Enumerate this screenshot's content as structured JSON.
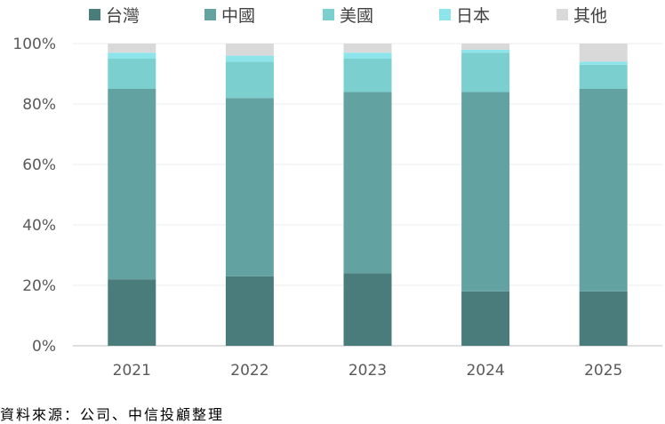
{
  "chart_data": {
    "type": "bar",
    "stacked": true,
    "categories": [
      "2021",
      "2022",
      "2023",
      "2024",
      "2025"
    ],
    "series": [
      {
        "name": "台灣",
        "color": "#4a7c7c",
        "values": [
          22,
          23,
          24,
          18,
          18
        ]
      },
      {
        "name": "中國",
        "color": "#62a3a1",
        "values": [
          63,
          59,
          60,
          66,
          67
        ]
      },
      {
        "name": "美國",
        "color": "#7ccfcf",
        "values": [
          10,
          12,
          11,
          13,
          8
        ]
      },
      {
        "name": "日本",
        "color": "#8de4ea",
        "values": [
          2,
          2,
          2,
          1,
          1
        ]
      },
      {
        "name": "其他",
        "color": "#d9d9d9",
        "values": [
          3,
          4,
          3,
          2,
          6
        ]
      }
    ],
    "ylim": [
      0,
      100
    ],
    "yticks": [
      "0%",
      "20%",
      "40%",
      "60%",
      "80%",
      "100%"
    ],
    "grid": true,
    "legend_position": "top"
  },
  "source": "資料來源：公司、中信投顧整理"
}
